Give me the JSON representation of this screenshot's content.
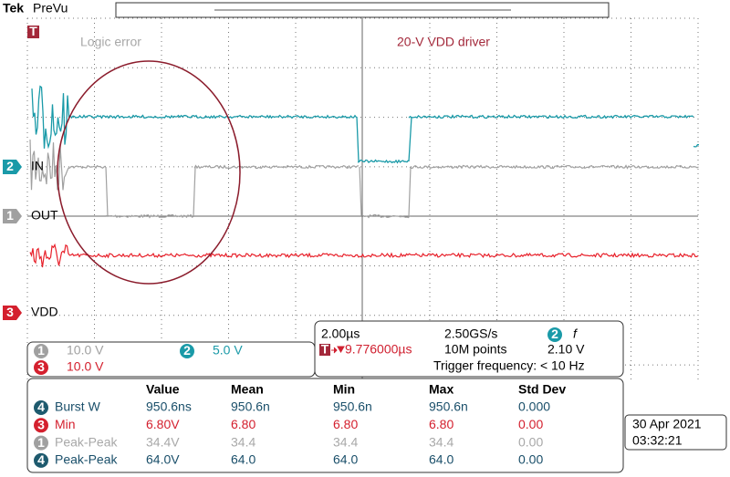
{
  "header": {
    "brand": "Tek",
    "mode": "PreVu"
  },
  "trigger_marker": "T",
  "annotations": [
    "Logic error",
    "20-V VDD driver"
  ],
  "channels": [
    {
      "number": "2",
      "label": "IN"
    },
    {
      "number": "1",
      "label": "OUT"
    },
    {
      "number": "3",
      "label": "VDD"
    }
  ],
  "scales": [
    {
      "channel": "1",
      "scale": "10.0 V"
    },
    {
      "channel": "2",
      "scale": "5.0 V"
    },
    {
      "channel": "3",
      "scale": "10.0 V"
    }
  ],
  "timebase": {
    "horizontal": "2.00µs",
    "sample_rate": "2.50GS/s",
    "trigger_channel": "2",
    "trigger_slope": "f",
    "trigger_badge": "T",
    "trigger_position": "9.776000µs",
    "record_length": "10M points",
    "trigger_level": "2.10 V",
    "trigger_frequency": "Trigger frequency: < 10 Hz"
  },
  "measurements": {
    "columns": [
      "Value",
      "Mean",
      "Min",
      "Max",
      "Std Dev"
    ],
    "rows": [
      {
        "source": "4",
        "name": "Burst W",
        "cells": [
          "950.6ns",
          "950.6n",
          "950.6n",
          "950.6n",
          "0.000"
        ]
      },
      {
        "source": "3",
        "name": "Min",
        "cells": [
          "6.80V",
          "6.80",
          "6.80",
          "6.80",
          "0.00"
        ]
      },
      {
        "source": "1",
        "name": "Peak-Peak",
        "cells": [
          "34.4V",
          "34.4",
          "34.4",
          "34.4",
          "0.00"
        ]
      },
      {
        "source": "4",
        "name": "Peak-Peak",
        "cells": [
          "64.0V",
          "64.0",
          "64.0",
          "64.0",
          "0.00"
        ]
      }
    ]
  },
  "datetime": {
    "date": "30 Apr 2021",
    "time": "03:32:21"
  }
}
